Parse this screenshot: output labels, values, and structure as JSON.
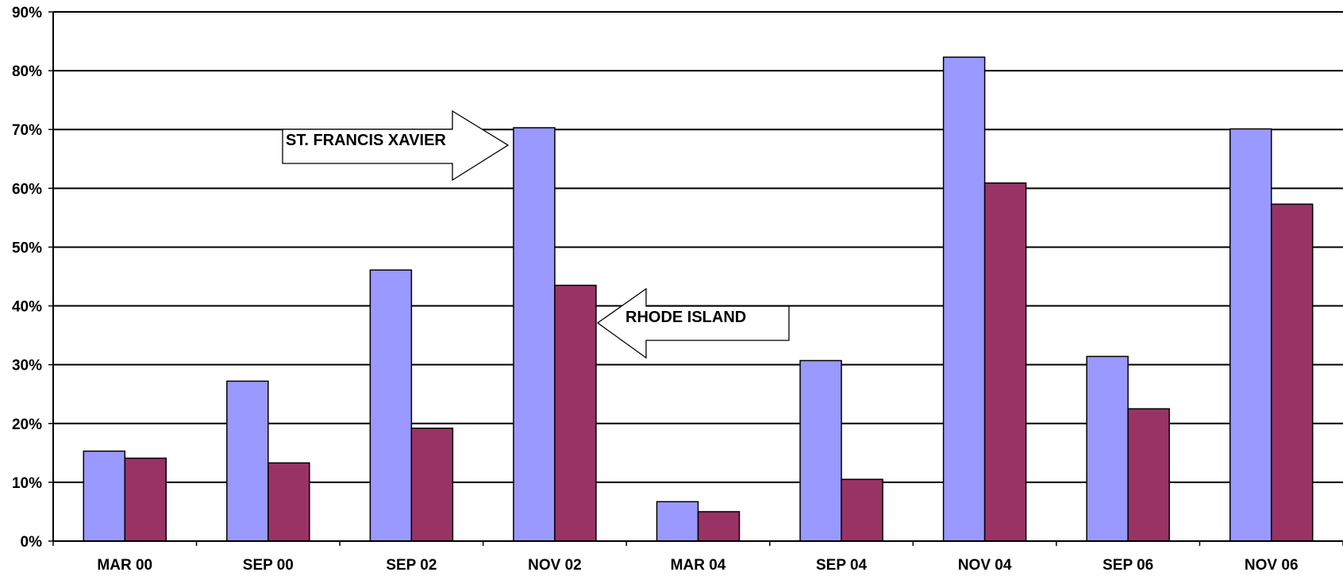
{
  "chart_data": {
    "type": "bar",
    "title": "",
    "xlabel": "",
    "ylabel": "",
    "categories": [
      "MAR 00",
      "SEP 00",
      "SEP 02",
      "NOV 02",
      "MAR 04",
      "SEP 04",
      "NOV 04",
      "SEP 06",
      "NOV 06"
    ],
    "series": [
      {
        "name": "ST. FRANCIS XAVIER",
        "color": "#9999ff",
        "values": [
          15.3,
          27.2,
          46.1,
          70.3,
          6.7,
          30.7,
          82.3,
          31.4,
          70.1
        ]
      },
      {
        "name": "RHODE ISLAND",
        "color": "#993366",
        "values": [
          14.1,
          13.3,
          19.2,
          43.5,
          5.0,
          10.5,
          60.9,
          22.5,
          57.3
        ]
      }
    ],
    "ylim": [
      0,
      90
    ],
    "yticks": [
      0,
      10,
      20,
      30,
      40,
      50,
      60,
      70,
      80,
      90
    ],
    "ytick_labels": [
      "0%",
      "10%",
      "20%",
      "30%",
      "40%",
      "50%",
      "60%",
      "70%",
      "80%",
      "90%"
    ],
    "grid": true,
    "legend": "none",
    "annotations": [
      {
        "text": "ST. FRANCIS XAVIER",
        "points_to": "NOV 02 ST. FRANCIS XAVIER bar",
        "arrow": "right"
      },
      {
        "text": "RHODE ISLAND",
        "points_to": "NOV 02 RHODE ISLAND bar",
        "arrow": "left"
      }
    ]
  }
}
